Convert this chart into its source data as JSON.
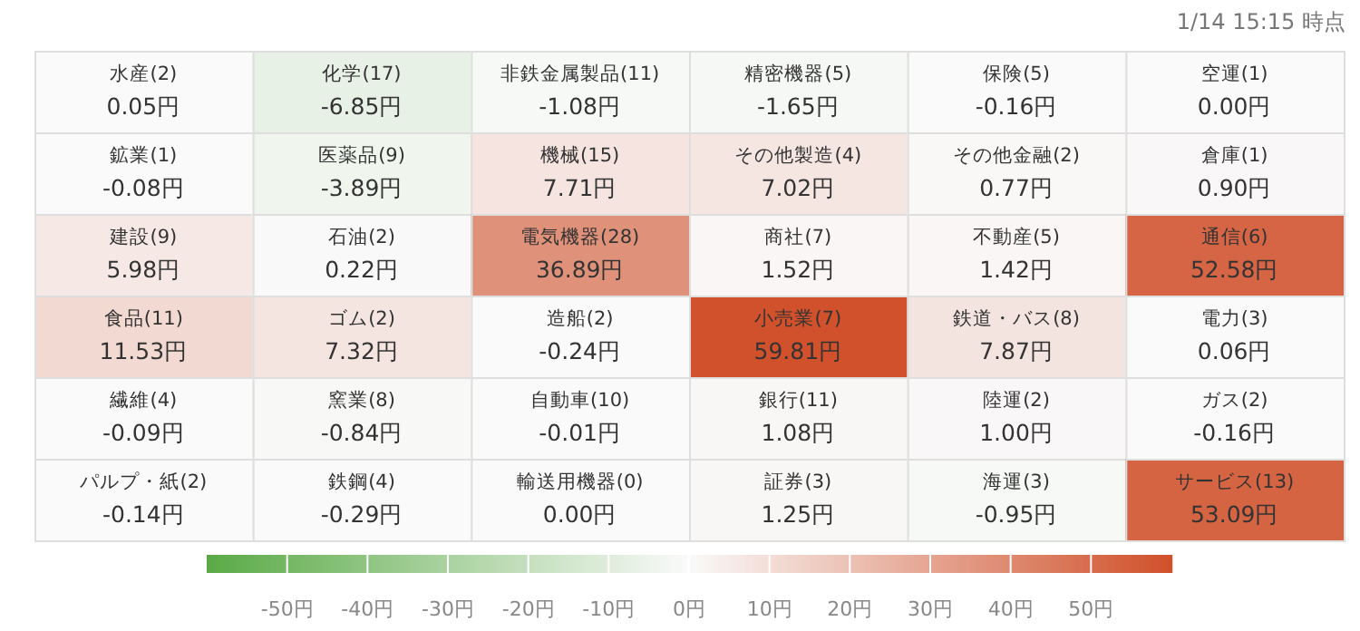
{
  "chart_data": {
    "type": "heatmap",
    "annotations": [
      "1/14 15:15 時点"
    ],
    "categories": [
      null,
      null,
      null,
      null,
      null,
      null
    ],
    "y_categories": [
      null,
      null,
      null,
      null,
      null,
      null
    ],
    "cells": [
      [
        0.05,
        -6.85,
        -1.08,
        -1.65,
        -0.16,
        0.0
      ],
      [
        -0.08,
        -3.89,
        7.71,
        7.02,
        0.77,
        0.9
      ],
      [
        5.98,
        0.22,
        36.89,
        1.52,
        1.42,
        52.58
      ],
      [
        11.53,
        7.32,
        -0.24,
        59.81,
        7.87,
        0.06
      ],
      [
        -0.09,
        -0.84,
        -0.01,
        1.08,
        1.0,
        -0.16
      ],
      [
        -0.14,
        -0.29,
        0.0,
        1.25,
        -0.95,
        53.09
      ]
    ],
    "cell_labels": [
      [
        "水産(2)\n0.05円",
        "化学(17)\n-6.85円",
        "非鉄金属製品(11)\n-1.08円",
        "精密機器(5)\n-1.65円",
        "保険(5)\n-0.16円",
        "空運(1)\n0.00円"
      ],
      [
        "鉱業(1)\n-0.08円",
        "医薬品(9)\n-3.89円",
        "機械(15)\n7.71円",
        "その他製造(4)\n7.02円",
        "その他金融(2)\n0.77円",
        "倉庫(1)\n0.90円"
      ],
      [
        "建設(9)\n5.98円",
        "石油(2)\n0.22円",
        "電気機器(28)\n36.89円",
        "商社(7)\n1.52円",
        "不動産(5)\n1.42円",
        "通信(6)\n52.58円"
      ],
      [
        "食品(11)\n11.53円",
        "ゴム(2)\n7.32円",
        "造船(2)\n-0.24円",
        "小売業(7)\n59.81円",
        "鉄道・バス(8)\n7.87円",
        "電力(3)\n0.06円"
      ],
      [
        "繊維(4)\n-0.09円",
        "窯業(8)\n-0.84円",
        "自動車(10)\n-0.01円",
        "銀行(11)\n1.08円",
        "陸運(2)\n1.00円",
        "ガス(2)\n-0.16円"
      ],
      [
        "パルプ・紙(2)\n-0.14円",
        "鉄鋼(4)\n-0.29円",
        "輸送用機器(0)\n0.00円",
        "証券(3)\n1.25円",
        "海運(3)\n-0.95円",
        "サービス(13)\n53.09円"
      ]
    ],
    "clim": [
      -60,
      60
    ],
    "cticks": [
      {
        "value": -50,
        "label": "-50円"
      },
      {
        "value": -40,
        "label": "-40円"
      },
      {
        "value": -30,
        "label": "-30円"
      },
      {
        "value": -20,
        "label": "-20円"
      },
      {
        "value": -10,
        "label": "-10円"
      },
      {
        "value": 0,
        "label": "0円"
      },
      {
        "value": 10,
        "label": "10円"
      },
      {
        "value": 20,
        "label": "20円"
      },
      {
        "value": 30,
        "label": "30円"
      },
      {
        "value": 40,
        "label": "40円"
      },
      {
        "value": 50,
        "label": "50円"
      }
    ]
  }
}
